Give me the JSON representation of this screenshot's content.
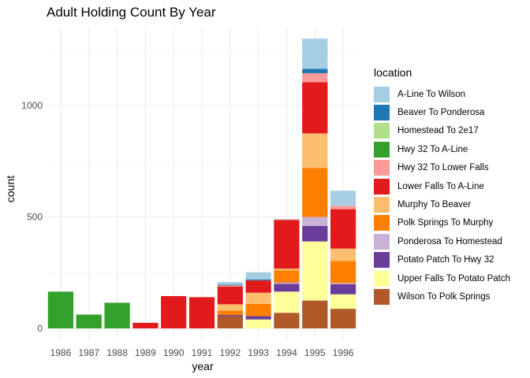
{
  "chart_data": {
    "type": "bar",
    "stacked": true,
    "title": "Adult Holding Count By Year",
    "xlabel": "year",
    "ylabel": "count",
    "ylim": [
      0,
      1350
    ],
    "yticks": [
      0,
      500,
      1000
    ],
    "grid": true,
    "legend_title": "location",
    "legend_position": "right",
    "categories": [
      "1986",
      "1987",
      "1988",
      "1989",
      "1990",
      "1991",
      "1992",
      "1993",
      "1994",
      "1995",
      "1996"
    ],
    "series": [
      {
        "name": "Wilson To Polk Springs",
        "color": "#b15928",
        "values": [
          0,
          0,
          0,
          0,
          0,
          0,
          55,
          0,
          70,
          125,
          88
        ]
      },
      {
        "name": "Upper Falls To Potato Patch",
        "color": "#ffff99",
        "values": [
          0,
          0,
          0,
          0,
          0,
          0,
          0,
          40,
          95,
          265,
          65
        ]
      },
      {
        "name": "Potato Patch To Hwy 32",
        "color": "#6a3d9a",
        "values": [
          0,
          0,
          0,
          0,
          0,
          0,
          5,
          15,
          35,
          70,
          45
        ]
      },
      {
        "name": "Ponderosa To Homestead",
        "color": "#cab2d6",
        "values": [
          0,
          0,
          0,
          0,
          0,
          0,
          0,
          0,
          5,
          40,
          5
        ]
      },
      {
        "name": "Polk Springs To Murphy",
        "color": "#ff7f00",
        "values": [
          0,
          0,
          0,
          0,
          0,
          0,
          20,
          55,
          55,
          220,
          100
        ]
      },
      {
        "name": "Murphy To Beaver",
        "color": "#fdbf6f",
        "values": [
          0,
          0,
          0,
          0,
          0,
          0,
          28,
          50,
          8,
          155,
          55
        ]
      },
      {
        "name": "Lower Falls To A-Line",
        "color": "#e31a1c",
        "values": [
          0,
          0,
          0,
          25,
          145,
          140,
          80,
          55,
          218,
          230,
          177
        ]
      },
      {
        "name": "Hwy 32 To Lower Falls",
        "color": "#fb9a99",
        "values": [
          0,
          0,
          0,
          0,
          0,
          0,
          5,
          0,
          3,
          40,
          15
        ]
      },
      {
        "name": "Hwy 32 To A-Line",
        "color": "#33a02c",
        "values": [
          165,
          62,
          115,
          0,
          0,
          0,
          0,
          0,
          0,
          0,
          0
        ]
      },
      {
        "name": "Homestead To 2e17",
        "color": "#b2df8a",
        "values": [
          0,
          0,
          0,
          0,
          0,
          0,
          0,
          0,
          0,
          0,
          0
        ]
      },
      {
        "name": "Beaver To Ponderosa",
        "color": "#1f78b4",
        "values": [
          0,
          0,
          0,
          0,
          0,
          0,
          3,
          5,
          0,
          20,
          0
        ]
      },
      {
        "name": "A-Line To Wilson",
        "color": "#a6cee3",
        "values": [
          0,
          0,
          0,
          0,
          0,
          0,
          12,
          32,
          2,
          135,
          68
        ]
      }
    ],
    "legend_order": [
      "A-Line To Wilson",
      "Beaver To Ponderosa",
      "Homestead To 2e17",
      "Hwy 32 To A-Line",
      "Hwy 32 To Lower Falls",
      "Lower Falls To A-Line",
      "Murphy To Beaver",
      "Polk Springs To Murphy",
      "Ponderosa To Homestead",
      "Potato Patch To Hwy 32",
      "Upper Falls To Potato Patch",
      "Wilson To Polk Springs"
    ]
  }
}
